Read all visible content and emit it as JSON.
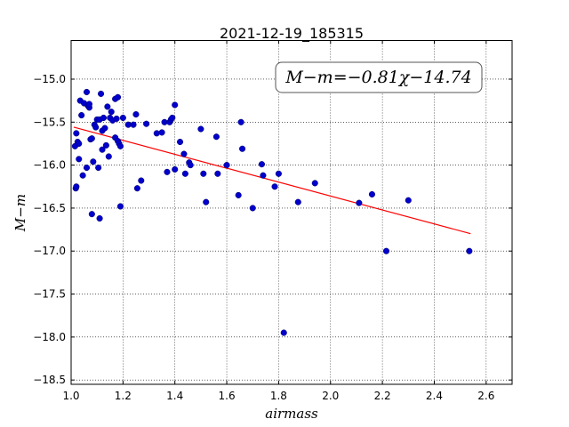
{
  "chart_data": {
    "type": "scatter",
    "title": "2021-12-19_185315",
    "xlabel": "airmass",
    "ylabel": "M−m",
    "annotation": "M−m=−0.81χ−14.74",
    "xlim": [
      1.0,
      2.7
    ],
    "ylim": [
      -18.55,
      -14.55
    ],
    "y_inverted": true,
    "grid": true,
    "x_ticks": [
      1.0,
      1.2,
      1.4,
      1.6,
      1.8,
      2.0,
      2.2,
      2.4,
      2.6
    ],
    "x_tick_labels": [
      "1.0",
      "1.2",
      "1.4",
      "1.6",
      "1.8",
      "2.0",
      "2.2",
      "2.4",
      "2.6"
    ],
    "y_ticks": [
      -15.0,
      -15.5,
      -16.0,
      -16.5,
      -17.0,
      -17.5,
      -18.0,
      -18.5
    ],
    "y_tick_labels": [
      "−15.0",
      "−15.5",
      "−16.0",
      "−16.5",
      "−17.0",
      "−17.5",
      "−18.0",
      "−18.5"
    ],
    "fit": {
      "slope": -0.81,
      "intercept": -14.74,
      "x_range": [
        1.01,
        2.54
      ],
      "color": "#ff0000"
    },
    "series": [
      {
        "color": "#0000cc",
        "x": [
          1.015,
          1.018,
          1.02,
          1.02,
          1.025,
          1.03,
          1.03,
          1.035,
          1.04,
          1.045,
          1.05,
          1.06,
          1.06,
          1.065,
          1.07,
          1.07,
          1.075,
          1.08,
          1.08,
          1.085,
          1.09,
          1.095,
          1.1,
          1.105,
          1.11,
          1.11,
          1.115,
          1.12,
          1.12,
          1.125,
          1.13,
          1.135,
          1.14,
          1.145,
          1.15,
          1.155,
          1.16,
          1.17,
          1.17,
          1.175,
          1.18,
          1.18,
          1.185,
          1.19,
          1.19,
          1.2,
          1.22,
          1.24,
          1.25,
          1.255,
          1.27,
          1.29,
          1.33,
          1.35,
          1.36,
          1.37,
          1.38,
          1.385,
          1.39,
          1.4,
          1.4,
          1.42,
          1.435,
          1.44,
          1.455,
          1.46,
          1.5,
          1.51,
          1.52,
          1.56,
          1.565,
          1.6,
          1.645,
          1.655,
          1.66,
          1.7,
          1.735,
          1.74,
          1.785,
          1.8,
          1.82,
          1.875,
          1.94,
          2.11,
          2.16,
          2.215,
          2.3,
          2.535
        ],
        "y": [
          -15.78,
          -16.27,
          -16.25,
          -15.63,
          -15.73,
          -15.75,
          -15.93,
          -15.25,
          -15.42,
          -16.12,
          -15.28,
          -16.03,
          -15.15,
          -15.31,
          -15.33,
          -15.29,
          -15.7,
          -15.69,
          -16.57,
          -15.96,
          -15.53,
          -15.56,
          -15.47,
          -16.03,
          -15.47,
          -16.62,
          -15.17,
          -15.82,
          -15.6,
          -15.45,
          -15.57,
          -15.77,
          -15.32,
          -15.9,
          -15.45,
          -15.38,
          -15.48,
          -15.68,
          -15.23,
          -15.46,
          -15.21,
          -15.72,
          -15.75,
          -15.78,
          -16.48,
          -15.45,
          -15.53,
          -15.53,
          -15.41,
          -16.27,
          -16.18,
          -15.52,
          -15.63,
          -15.62,
          -15.5,
          -16.08,
          -15.5,
          -15.47,
          -15.45,
          -15.3,
          -16.05,
          -15.73,
          -15.87,
          -16.1,
          -15.97,
          -16.0,
          -15.58,
          -16.1,
          -16.43,
          -15.67,
          -16.1,
          -16.0,
          -16.35,
          -15.5,
          -15.81,
          -16.5,
          -15.99,
          -16.12,
          -16.25,
          -16.1,
          -17.95,
          -16.43,
          -16.21,
          -16.44,
          -16.34,
          -17.0,
          -16.41,
          -17.0
        ]
      }
    ]
  }
}
